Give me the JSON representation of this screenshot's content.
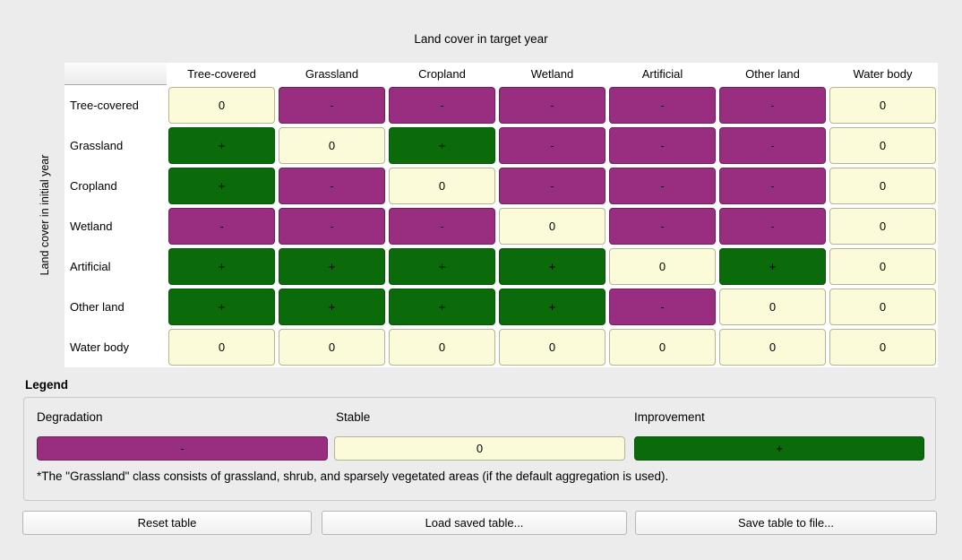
{
  "title": "Land cover in target year",
  "y_axis_label": "Land cover in initial year",
  "matrix": {
    "columns": [
      "Tree-covered",
      "Grassland",
      "Cropland",
      "Wetland",
      "Artificial",
      "Other land",
      "Water body"
    ],
    "rows": [
      "Tree-covered",
      "Grassland",
      "Cropland",
      "Wetland",
      "Artificial",
      "Other land",
      "Water body"
    ],
    "cells": [
      [
        "0",
        "-",
        "-",
        "-",
        "-",
        "-",
        "0"
      ],
      [
        "+",
        "0",
        "+",
        "-",
        "-",
        "-",
        "0"
      ],
      [
        "+",
        "-",
        "0",
        "-",
        "-",
        "-",
        "0"
      ],
      [
        "-",
        "-",
        "-",
        "0",
        "-",
        "-",
        "0"
      ],
      [
        "+",
        "+",
        "+",
        "+",
        "0",
        "+",
        "0"
      ],
      [
        "+",
        "+",
        "+",
        "+",
        "-",
        "0",
        "0"
      ],
      [
        "0",
        "0",
        "0",
        "0",
        "0",
        "0",
        "0"
      ]
    ]
  },
  "legend": {
    "heading": "Legend",
    "items": [
      {
        "label": "Degradation",
        "symbol": "-",
        "key": "degradation"
      },
      {
        "label": "Stable",
        "symbol": "0",
        "key": "stable"
      },
      {
        "label": "Improvement",
        "symbol": "+",
        "key": "improvement"
      }
    ],
    "footnote": "*The \"Grassland\" class consists of grassland, shrub, and sparsely vegetated areas (if the default aggregation is used)."
  },
  "buttons": {
    "reset": "Reset table",
    "load": "Load saved table...",
    "save": "Save table to file..."
  },
  "colors": {
    "degradation": "#992e81",
    "degradation_border": "#6f1f5d",
    "stable": "#fbfbda",
    "stable_border": "#b5b596",
    "improvement": "#0b6b0b",
    "improvement_border": "#07540a"
  }
}
